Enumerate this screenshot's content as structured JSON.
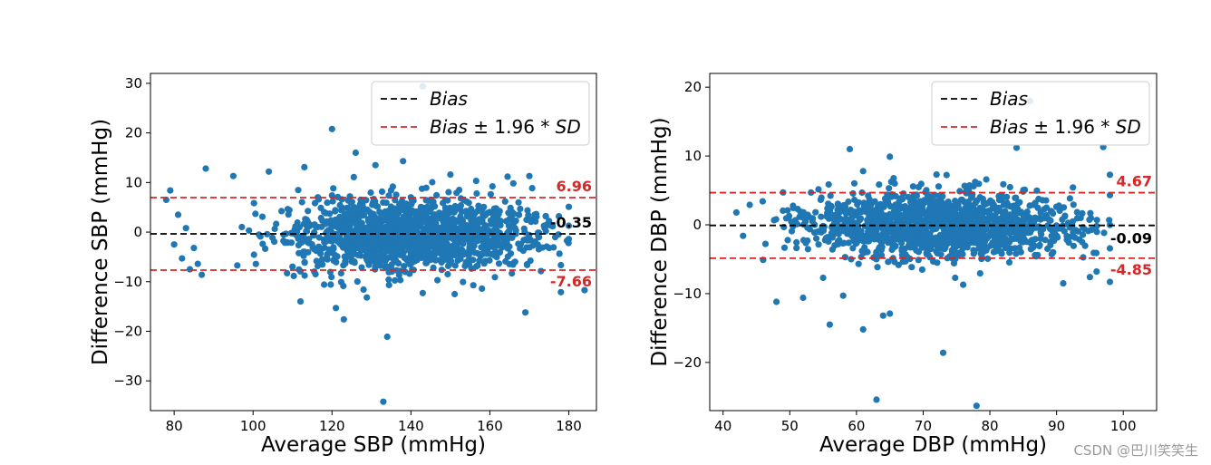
{
  "watermark": "CSDN @巴川笑笑生",
  "colors": {
    "point": "#1f77b4",
    "bias": "#000000",
    "limits": "#d62728",
    "axis": "#000000"
  },
  "chart_data": [
    {
      "type": "scatter",
      "id": "sbp",
      "xlabel": "Average SBP (mmHg)",
      "ylabel": "Difference SBP (mmHg)",
      "xlim": [
        74,
        187
      ],
      "ylim": [
        -36,
        32
      ],
      "xticks": [
        80,
        100,
        120,
        140,
        160,
        180
      ],
      "xtick_labels": [
        "80",
        "100",
        "120",
        "140",
        "160",
        "180"
      ],
      "yticks": [
        -30,
        -20,
        -10,
        0,
        10,
        20,
        30
      ],
      "ytick_labels": [
        "−30",
        "−20",
        "−10",
        "0",
        "10",
        "20",
        "30"
      ],
      "bias": -0.35,
      "upper": 6.96,
      "lower": -7.66,
      "labels": {
        "upper": "6.96",
        "bias": "-0.35",
        "lower": "-7.66"
      },
      "legend": {
        "position": "top-right",
        "bias": "Bias",
        "limits_prefix": "Bias",
        "limits_mid": " ± 1.96 * ",
        "limits_suffix": "SD"
      },
      "dense_x": [
        96,
        180
      ],
      "dense_sd": 3.7,
      "outliers": [
        [
          120,
          20.8
        ],
        [
          126,
          16
        ],
        [
          138,
          14.3
        ],
        [
          143,
          29.4
        ],
        [
          88,
          12.8
        ],
        [
          95,
          11.3
        ],
        [
          104,
          12.2
        ],
        [
          113,
          13.1
        ],
        [
          131,
          13.5
        ],
        [
          150,
          11.6
        ],
        [
          170,
          11.3
        ],
        [
          118,
          -10.6
        ],
        [
          121,
          -15.3
        ],
        [
          123,
          -17.6
        ],
        [
          133,
          -34.2
        ],
        [
          134,
          -21.1
        ],
        [
          143,
          -12.3
        ],
        [
          169,
          -16.2
        ],
        [
          184,
          -11.7
        ],
        [
          178,
          -12.1
        ],
        [
          87,
          -8.6
        ],
        [
          112,
          -14
        ],
        [
          128,
          -11.6
        ],
        [
          158,
          -11.4
        ],
        [
          78,
          6.5
        ],
        [
          79,
          8.4
        ],
        [
          80,
          -2.5
        ],
        [
          82,
          -5.3
        ],
        [
          84,
          -7.5
        ],
        [
          86,
          -6.4
        ],
        [
          81,
          3.5
        ],
        [
          83,
          0.8
        ],
        [
          85,
          -3.2
        ]
      ]
    },
    {
      "type": "scatter",
      "id": "dbp",
      "xlabel": "Average DBP (mmHg)",
      "ylabel": "Difference DBP (mmHg)",
      "xlim": [
        38,
        105
      ],
      "ylim": [
        -27,
        22
      ],
      "xticks": [
        40,
        50,
        60,
        70,
        80,
        90,
        100
      ],
      "xtick_labels": [
        "40",
        "50",
        "60",
        "70",
        "80",
        "90",
        "100"
      ],
      "yticks": [
        -20,
        -10,
        0,
        10,
        20
      ],
      "ytick_labels": [
        "−20",
        "−10",
        "0",
        "10",
        "20"
      ],
      "bias": -0.09,
      "upper": 4.67,
      "lower": -4.85,
      "labels": {
        "upper": "4.67",
        "bias": "-0.09",
        "lower": "-4.85"
      },
      "legend": {
        "position": "top-right",
        "bias": "Bias",
        "limits_prefix": "Bias",
        "limits_mid": " ± 1.96 * ",
        "limits_suffix": "SD"
      },
      "dense_x": [
        45,
        98
      ],
      "dense_sd": 2.3,
      "outliers": [
        [
          59,
          11
        ],
        [
          61,
          7.8
        ],
        [
          65,
          9.9
        ],
        [
          72,
          7.3
        ],
        [
          84,
          11.2
        ],
        [
          86,
          18
        ],
        [
          97,
          11.3
        ],
        [
          55,
          -7.7
        ],
        [
          56,
          -14.5
        ],
        [
          58,
          -10.3
        ],
        [
          61,
          -15.2
        ],
        [
          63,
          -25.4
        ],
        [
          64,
          -13.2
        ],
        [
          65,
          -12.9
        ],
        [
          73,
          -18.6
        ],
        [
          78,
          -26.3
        ],
        [
          48,
          -11.2
        ],
        [
          52,
          -10.6
        ],
        [
          76,
          -8.7
        ],
        [
          91,
          -8.5
        ],
        [
          98,
          -8.3
        ],
        [
          42,
          1.8
        ],
        [
          43,
          -1.6
        ],
        [
          44,
          2.9
        ],
        [
          46,
          -5.1
        ],
        [
          95,
          -7.6
        ],
        [
          96,
          -6.8
        ]
      ]
    }
  ]
}
